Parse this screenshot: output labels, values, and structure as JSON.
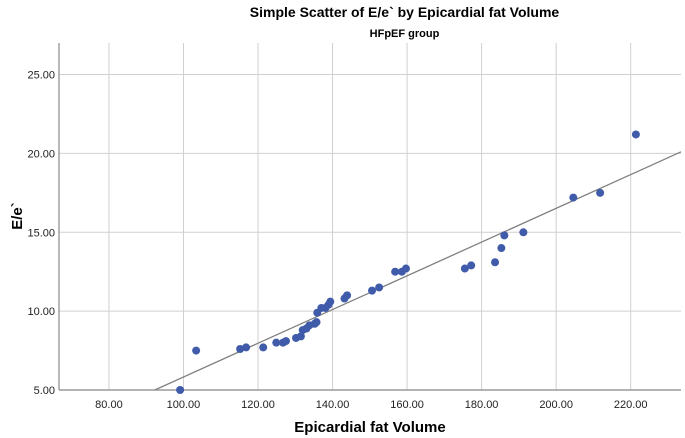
{
  "chart_data": {
    "type": "scatter",
    "title": "Simple Scatter of E/e` by Epicardial fat Volume",
    "subtitle": "HFpEF group",
    "xlabel": "Epicardial fat Volume",
    "ylabel": "E/e`",
    "xlim": [
      66.6,
      233.5
    ],
    "ylim": [
      5.0,
      27.0
    ],
    "xticks": [
      "80.00",
      "100.00",
      "120.00",
      "140.00",
      "160.00",
      "180.00",
      "200.00",
      "220.00"
    ],
    "yticks": [
      "5.00",
      "10.00",
      "15.00",
      "20.00",
      "25.00"
    ],
    "grid": true,
    "marker_color": "#3f5ba9",
    "fit_line": {
      "color": "#808080",
      "x0": 92.3,
      "y0": 5.0,
      "x1": 233.5,
      "y1": 20.1
    },
    "points": [
      {
        "x": 99.1,
        "y": 5.0
      },
      {
        "x": 103.4,
        "y": 7.5
      },
      {
        "x": 115.2,
        "y": 7.6
      },
      {
        "x": 116.8,
        "y": 7.7
      },
      {
        "x": 121.4,
        "y": 7.7
      },
      {
        "x": 124.9,
        "y": 8.0
      },
      {
        "x": 126.7,
        "y": 8.0
      },
      {
        "x": 127.5,
        "y": 8.1
      },
      {
        "x": 130.2,
        "y": 8.3
      },
      {
        "x": 131.5,
        "y": 8.4
      },
      {
        "x": 132.0,
        "y": 8.8
      },
      {
        "x": 133.0,
        "y": 8.9
      },
      {
        "x": 133.8,
        "y": 9.1
      },
      {
        "x": 135.2,
        "y": 9.2
      },
      {
        "x": 135.7,
        "y": 9.3
      },
      {
        "x": 135.9,
        "y": 9.9
      },
      {
        "x": 137.0,
        "y": 10.2
      },
      {
        "x": 138.1,
        "y": 10.2
      },
      {
        "x": 138.9,
        "y": 10.4
      },
      {
        "x": 139.4,
        "y": 10.6
      },
      {
        "x": 143.2,
        "y": 10.8
      },
      {
        "x": 143.9,
        "y": 11.0
      },
      {
        "x": 150.6,
        "y": 11.3
      },
      {
        "x": 152.5,
        "y": 11.5
      },
      {
        "x": 156.8,
        "y": 12.5
      },
      {
        "x": 158.6,
        "y": 12.5
      },
      {
        "x": 159.7,
        "y": 12.7
      },
      {
        "x": 175.5,
        "y": 12.7
      },
      {
        "x": 177.2,
        "y": 12.9
      },
      {
        "x": 183.6,
        "y": 13.1
      },
      {
        "x": 185.3,
        "y": 14.0
      },
      {
        "x": 186.1,
        "y": 14.8
      },
      {
        "x": 191.2,
        "y": 15.0
      },
      {
        "x": 204.6,
        "y": 17.2
      },
      {
        "x": 211.8,
        "y": 17.5
      },
      {
        "x": 221.4,
        "y": 21.2
      }
    ]
  }
}
